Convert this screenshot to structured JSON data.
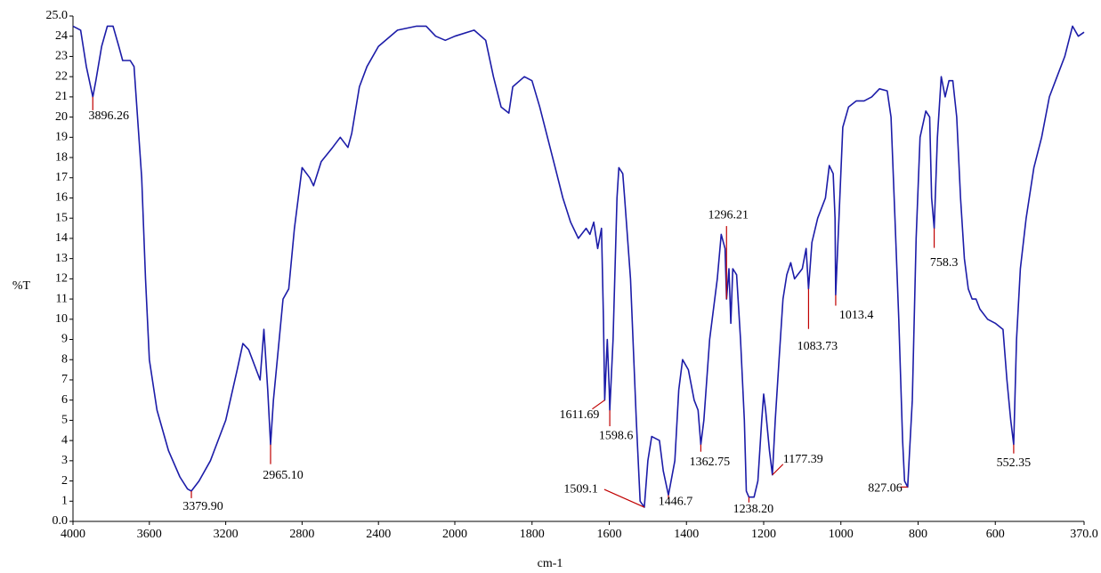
{
  "chart_data": {
    "type": "line",
    "ylabel": "%T",
    "xlabel": "cm-1",
    "color": "#1c1ca8",
    "peak_color": "#c00000",
    "xlim": [
      4000,
      370
    ],
    "x_scale_break": 2000,
    "xticks": [
      4000,
      3600,
      3200,
      2800,
      2400,
      2000,
      1800,
      1600,
      1400,
      1200,
      1000,
      800,
      600,
      {
        "value": 370,
        "label": "370.0"
      }
    ],
    "ylim": [
      0,
      25
    ],
    "yticks": [
      {
        "value": 0,
        "label": "0.0"
      },
      1,
      2,
      3,
      4,
      5,
      6,
      7,
      8,
      9,
      10,
      11,
      12,
      13,
      14,
      15,
      16,
      17,
      18,
      19,
      20,
      21,
      22,
      23,
      24,
      {
        "value": 25,
        "label": "25.0"
      }
    ],
    "x": [
      4000,
      3960,
      3930,
      3896.26,
      3880,
      3850,
      3820,
      3790,
      3760,
      3740,
      3700,
      3680,
      3640,
      3620,
      3600,
      3560,
      3500,
      3440,
      3400,
      3379.9,
      3340,
      3280,
      3200,
      3140,
      3110,
      3080,
      3060,
      3040,
      3020,
      3000,
      2980,
      2965.1,
      2950,
      2920,
      2900,
      2870,
      2840,
      2800,
      2760,
      2740,
      2700,
      2640,
      2600,
      2560,
      2540,
      2500,
      2460,
      2400,
      2300,
      2200,
      2150,
      2100,
      2050,
      2000,
      1950,
      1920,
      1900,
      1880,
      1860,
      1850,
      1820,
      1800,
      1780,
      1760,
      1740,
      1720,
      1700,
      1680,
      1660,
      1650,
      1640,
      1630,
      1620,
      1615,
      1611.69,
      1605,
      1600,
      1598.6,
      1590,
      1580,
      1575,
      1565,
      1560,
      1545,
      1530,
      1520,
      1509.1,
      1500,
      1490,
      1470,
      1460,
      1446.7,
      1430,
      1420,
      1410,
      1395,
      1380,
      1370,
      1362.75,
      1355,
      1340,
      1320,
      1310,
      1300,
      1296.21,
      1290,
      1285,
      1280,
      1270,
      1260,
      1250,
      1245,
      1238.2,
      1225,
      1215,
      1205,
      1200,
      1195,
      1185,
      1177.39,
      1170,
      1160,
      1150,
      1140,
      1130,
      1120,
      1100,
      1090,
      1083.73,
      1075,
      1060,
      1040,
      1030,
      1020,
      1015,
      1013.4,
      1005,
      995,
      980,
      960,
      940,
      920,
      900,
      880,
      870,
      860,
      850,
      840,
      835,
      827.06,
      815,
      805,
      795,
      780,
      770,
      765,
      758.3,
      750,
      740,
      730,
      720,
      710,
      700,
      690,
      680,
      670,
      660,
      650,
      640,
      620,
      600,
      580,
      570,
      560,
      552.35,
      545,
      535,
      520,
      500,
      480,
      460,
      440,
      420,
      400,
      385,
      370
    ],
    "values": [
      24.5,
      24.3,
      22.5,
      21.0,
      21.8,
      23.5,
      24.5,
      24.5,
      23.5,
      22.8,
      22.8,
      22.5,
      17,
      12,
      8,
      5.5,
      3.5,
      2.2,
      1.6,
      1.5,
      2.0,
      3,
      5,
      7.5,
      8.8,
      8.5,
      8,
      7.5,
      7,
      9.5,
      6.5,
      3.8,
      6,
      9,
      11,
      11.5,
      14.5,
      17.5,
      17,
      16.6,
      17.8,
      18.5,
      19,
      18.5,
      19.2,
      21.5,
      22.5,
      23.5,
      24.3,
      24.5,
      24.5,
      24.0,
      23.8,
      24,
      24.3,
      23.8,
      22,
      20.5,
      20.2,
      21.5,
      22.0,
      21.8,
      20.5,
      19,
      17.5,
      16,
      14.8,
      14,
      14.5,
      14.2,
      14.8,
      13.5,
      14.5,
      10,
      6.0,
      9,
      6.5,
      5.5,
      9,
      16,
      17.5,
      17.2,
      16,
      12,
      5,
      1.0,
      0.7,
      3,
      4.2,
      4.0,
      2.5,
      1.3,
      3,
      6.5,
      8,
      7.5,
      6.0,
      5.5,
      3.8,
      5,
      9,
      12,
      14.2,
      13.5,
      11,
      12.5,
      9.8,
      12.5,
      12.2,
      9,
      5,
      1.5,
      1.2,
      1.2,
      2,
      5,
      6.3,
      5.5,
      3.5,
      2.3,
      5,
      8,
      11,
      12.2,
      12.8,
      12.0,
      12.5,
      13.5,
      11.5,
      13.8,
      15,
      16,
      17.6,
      17.2,
      15,
      11.2,
      15,
      19.5,
      20.5,
      20.8,
      20.8,
      21,
      21.4,
      21.3,
      20,
      15,
      10,
      4,
      2,
      1.7,
      6,
      14,
      19,
      20.3,
      20,
      16,
      14.5,
      19,
      22,
      21,
      21.8,
      21.8,
      20,
      16,
      13,
      11.5,
      11,
      11,
      10.5,
      10,
      9.8,
      9.5,
      7,
      5,
      3.8,
      9,
      12.5,
      15,
      17.5,
      19,
      21,
      22,
      23,
      24.5,
      24,
      24.2
    ],
    "peaks": {
      "x": [
        3896.26,
        3379.9,
        2965.1,
        1611.69,
        1598.6,
        1509.1,
        1446.7,
        1362.75,
        1296.21,
        1238.2,
        1177.39,
        1083.73,
        1013.4,
        827.06,
        758.3,
        552.35
      ],
      "y": [
        21.0,
        1.5,
        3.8,
        6.0,
        5.5,
        0.7,
        1.3,
        3.8,
        11,
        1.2,
        2.3,
        11.5,
        11.2,
        1.7,
        14.5,
        3.8
      ],
      "value_labels": [
        "3896.26",
        "3379.90",
        "2965.10",
        "1611.69",
        "1598.6",
        "1509.1",
        "1446.7",
        "1362.75",
        "1296.21",
        "1238.20",
        "1177.39",
        "1083.73",
        "1013.4",
        "827.06",
        "758.3",
        "552.35"
      ]
    }
  }
}
